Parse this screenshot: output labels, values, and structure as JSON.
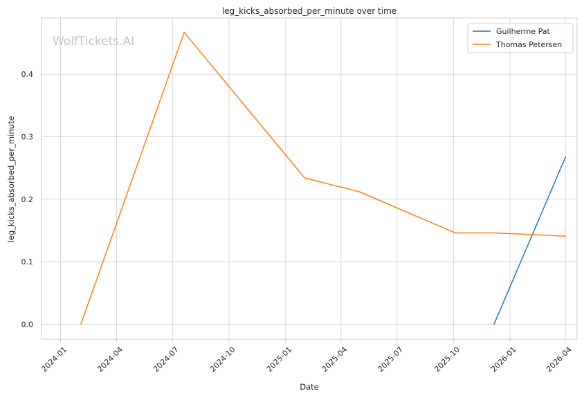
{
  "chart_data": {
    "type": "line",
    "title": "leg_kicks_absorbed_per_minute over time",
    "xlabel": "Date",
    "ylabel": "leg_kicks_absorbed_per_minute",
    "watermark": "WolfTickets.AI",
    "x_ticks": [
      "2024-01",
      "2024-04",
      "2024-07",
      "2024-10",
      "2025-01",
      "2025-04",
      "2025-07",
      "2025-10",
      "2026-01",
      "2026-04"
    ],
    "y_ticks": [
      "0.0",
      "0.1",
      "0.2",
      "0.3",
      "0.4"
    ],
    "xlim": [
      "2023-12-01",
      "2026-04-20"
    ],
    "ylim": [
      -0.024,
      0.49
    ],
    "grid": true,
    "legend_position": "top-right",
    "series": [
      {
        "name": "Guilherme Pat",
        "color": "#1f77b4",
        "points": [
          {
            "x": "2025-12-06",
            "y": 0.0
          },
          {
            "x": "2026-04-01",
            "y": 0.267
          }
        ]
      },
      {
        "name": "Thomas Petersen",
        "color": "#ff7f0e",
        "points": [
          {
            "x": "2024-02-03",
            "y": 0.0
          },
          {
            "x": "2024-07-20",
            "y": 0.467
          },
          {
            "x": "2025-02-01",
            "y": 0.234
          },
          {
            "x": "2025-05-01",
            "y": 0.212
          },
          {
            "x": "2025-10-04",
            "y": 0.146
          },
          {
            "x": "2025-12-06",
            "y": 0.146
          },
          {
            "x": "2026-04-01",
            "y": 0.141
          }
        ]
      }
    ]
  }
}
